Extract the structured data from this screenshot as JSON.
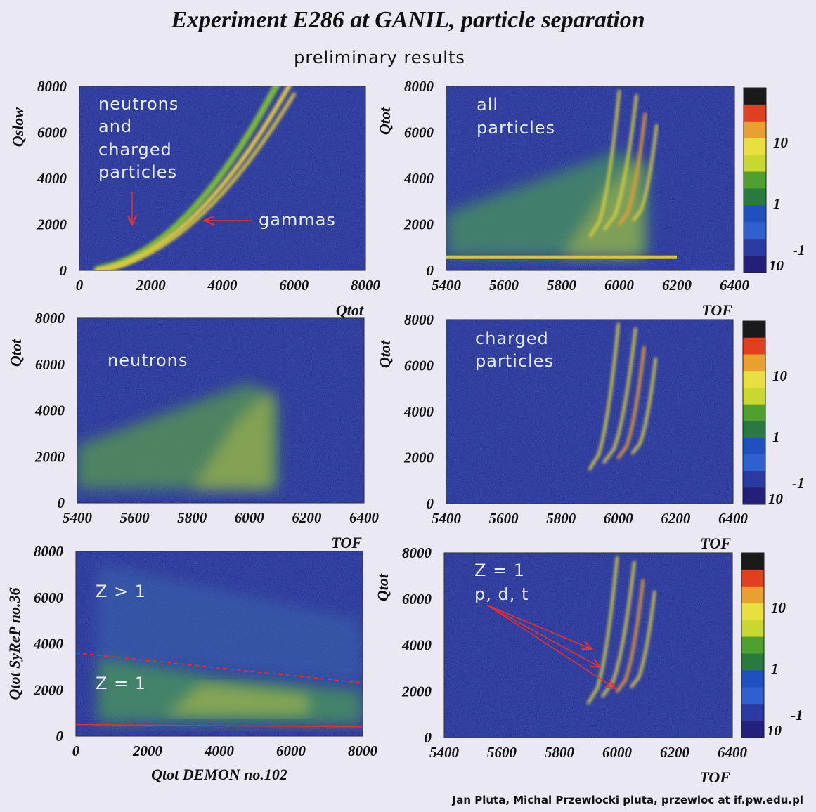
{
  "title": "Experiment E286 at GANIL, particle separation",
  "subtitle": "preliminary results",
  "footer": "Jan Pluta,  Michal Przewlocki   pluta, przewloc at if.pw.edu.pl",
  "colors": {
    "background": "#e9e8f3",
    "plot_bg": "#26308e",
    "annotation_arrow": "#e83030"
  },
  "colorbar": {
    "scale": "log",
    "labels": [
      {
        "text": "10"
      },
      {
        "text": "1"
      },
      {
        "base": "10",
        "exp": "-1"
      }
    ],
    "colors": [
      "#1a1a1a",
      "#e04020",
      "#e8a030",
      "#e8e040",
      "#c8d830",
      "#50a030",
      "#2a7a40",
      "#2050c0",
      "#3060d0",
      "#2a3aa0",
      "#22207a"
    ]
  },
  "chart_data": [
    {
      "type": "heatmap",
      "panel": "top-left",
      "xlabel": "Qtot",
      "ylabel": "Qslow",
      "xlim": [
        0,
        8000
      ],
      "ylim": [
        0,
        8000
      ],
      "xticks": [
        "0",
        "2000",
        "4000",
        "6000",
        "8000"
      ],
      "yticks": [
        "0",
        "2000",
        "4000",
        "6000",
        "8000"
      ],
      "annotations": [
        "neutrons",
        "and",
        "charged",
        "particles",
        "gammas"
      ],
      "colorbar": false
    },
    {
      "type": "heatmap",
      "panel": "top-right",
      "xlabel": "TOF",
      "ylabel": "Qtot",
      "xlim": [
        5400,
        6400
      ],
      "ylim": [
        0,
        8000
      ],
      "xticks": [
        "5400",
        "5600",
        "5800",
        "6000",
        "6200",
        "6400"
      ],
      "yticks": [
        "0",
        "2000",
        "4000",
        "6000",
        "8000"
      ],
      "annotations": [
        "all",
        "particles"
      ],
      "colorbar": true
    },
    {
      "type": "heatmap",
      "panel": "middle-left",
      "xlabel": "TOF",
      "ylabel": "Qtot",
      "xlim": [
        5400,
        6400
      ],
      "ylim": [
        0,
        8000
      ],
      "xticks": [
        "5400",
        "5600",
        "5800",
        "6000",
        "6200",
        "6400"
      ],
      "yticks": [
        "0",
        "2000",
        "4000",
        "6000",
        "8000"
      ],
      "annotations": [
        "neutrons"
      ],
      "colorbar": false
    },
    {
      "type": "heatmap",
      "panel": "middle-right",
      "xlabel": "TOF",
      "ylabel": "Qtot",
      "xlim": [
        5400,
        6400
      ],
      "ylim": [
        0,
        8000
      ],
      "xticks": [
        "5400",
        "5600",
        "5800",
        "6000",
        "6200",
        "6400"
      ],
      "yticks": [
        "0",
        "2000",
        "4000",
        "6000",
        "8000"
      ],
      "annotations": [
        "charged",
        "particles"
      ],
      "colorbar": true
    },
    {
      "type": "heatmap",
      "panel": "bottom-left",
      "xlabel": "Qtot DEMON no.102",
      "ylabel": "Qtot SyReP no.36",
      "xlim": [
        0,
        8000
      ],
      "ylim": [
        0,
        8000
      ],
      "xticks": [
        "0",
        "2000",
        "4000",
        "6000",
        "8000"
      ],
      "yticks": [
        "0",
        "2000",
        "4000",
        "6000",
        "8000"
      ],
      "annotations": [
        "Z > 1",
        "Z = 1"
      ],
      "colorbar": false
    },
    {
      "type": "heatmap",
      "panel": "bottom-right",
      "xlabel": "TOF",
      "ylabel": "Qtot",
      "xlim": [
        5400,
        6400
      ],
      "ylim": [
        0,
        8000
      ],
      "xticks": [
        "5400",
        "5600",
        "5800",
        "6000",
        "6200",
        "6400"
      ],
      "yticks": [
        "0",
        "2000",
        "4000",
        "6000",
        "8000"
      ],
      "annotations": [
        "Z = 1",
        "p, d, t"
      ],
      "colorbar": true
    }
  ]
}
